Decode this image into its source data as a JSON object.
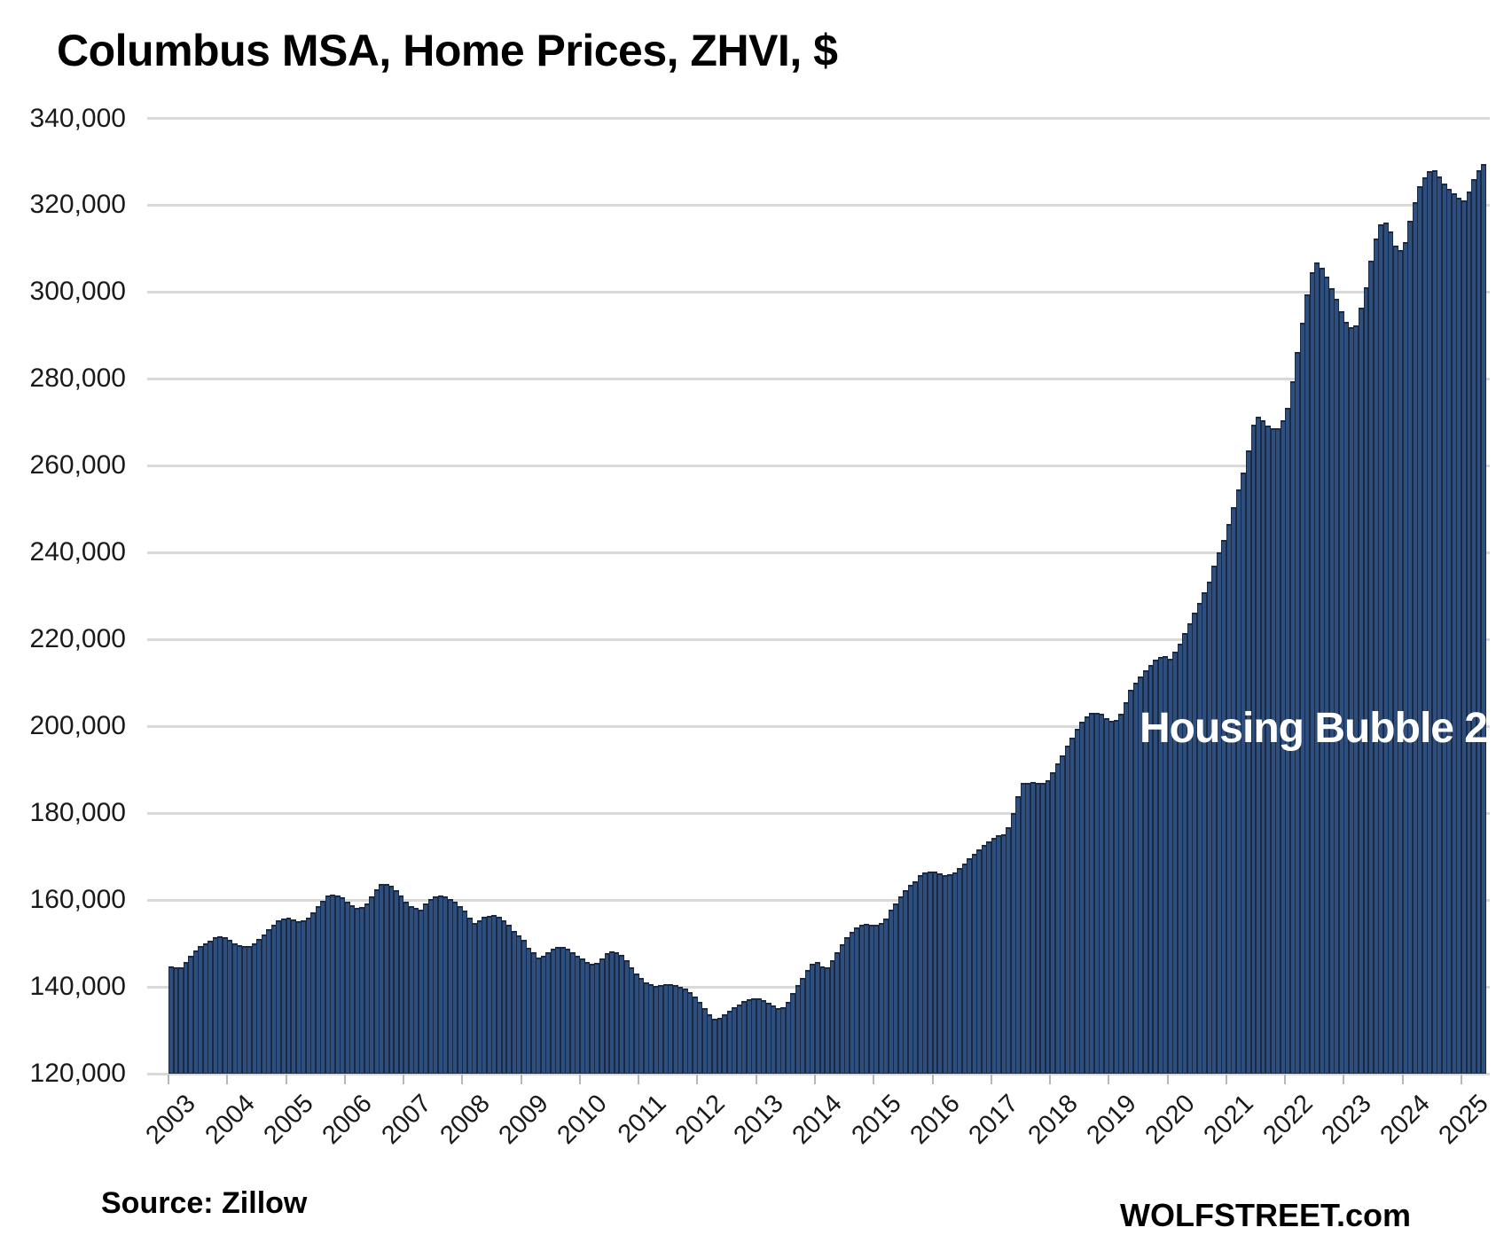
{
  "title": "Columbus MSA, Home Prices, ZHVI, $",
  "annotation": "Housing Bubble 2",
  "source_note": "Source: Zillow",
  "watermark": "WOLFSTREET.com",
  "colors": {
    "bar_fill": "#2e4f7e",
    "bar_border": "#1b2a44",
    "gridline": "#d9d9d9",
    "tick": "#b7b7b7",
    "axis_text": "#1a1a1a",
    "annotation_text": "#ffffff",
    "background": "#ffffff"
  },
  "chart_data": {
    "type": "bar",
    "title": "Columbus MSA, Home Prices, ZHVI, $",
    "unit": "USD",
    "frequency": "monthly",
    "start_month": "2003-01",
    "end_month": "2025-05",
    "grid": "horizontal",
    "legend": "none",
    "ylim": [
      120000,
      340000
    ],
    "y_ticks": [
      120000,
      140000,
      160000,
      180000,
      200000,
      220000,
      240000,
      260000,
      280000,
      300000,
      320000,
      340000
    ],
    "y_tick_labels": [
      "120,000",
      "140,000",
      "160,000",
      "180,000",
      "200,000",
      "220,000",
      "240,000",
      "260,000",
      "280,000",
      "300,000",
      "320,000",
      "340,000"
    ],
    "x_tick_labels": [
      "2003",
      "2004",
      "2005",
      "2006",
      "2007",
      "2008",
      "2009",
      "2010",
      "2011",
      "2012",
      "2013",
      "2014",
      "2015",
      "2016",
      "2017",
      "2018",
      "2019",
      "2020",
      "2021",
      "2022",
      "2023",
      "2024",
      "2025"
    ],
    "values": [
      144700,
      144500,
      144500,
      145800,
      147200,
      148400,
      149300,
      150000,
      150700,
      151400,
      151600,
      151400,
      150800,
      150100,
      149600,
      149300,
      149400,
      150100,
      151000,
      152000,
      153300,
      154400,
      155300,
      155800,
      156000,
      155500,
      155100,
      155300,
      156000,
      157200,
      158600,
      159900,
      161000,
      161300,
      161100,
      160600,
      159600,
      158700,
      158200,
      158400,
      159200,
      160800,
      162500,
      163600,
      163700,
      163200,
      162200,
      161100,
      159700,
      158600,
      158200,
      157700,
      159300,
      160300,
      160800,
      161000,
      160800,
      160300,
      159700,
      158600,
      157600,
      155900,
      154700,
      155300,
      156100,
      156400,
      156600,
      156200,
      155400,
      154200,
      152900,
      151800,
      150800,
      149000,
      147900,
      146800,
      147200,
      148000,
      148800,
      149200,
      149200,
      148700,
      148000,
      147100,
      146600,
      145700,
      145300,
      145600,
      146500,
      147700,
      148100,
      148000,
      147300,
      146200,
      144600,
      143000,
      142000,
      141000,
      140700,
      140300,
      140400,
      140700,
      140700,
      140500,
      140100,
      139700,
      138800,
      137800,
      136600,
      135100,
      133600,
      132700,
      132900,
      133600,
      134400,
      135300,
      136000,
      136700,
      137200,
      137400,
      137300,
      137000,
      136300,
      135700,
      135100,
      135300,
      136500,
      138500,
      140400,
      142000,
      143800,
      145300,
      145800,
      144700,
      144600,
      146100,
      148000,
      149900,
      151400,
      152600,
      153600,
      154400,
      154500,
      154200,
      154300,
      154700,
      155700,
      157700,
      159300,
      160800,
      162200,
      163400,
      164300,
      165700,
      166400,
      166600,
      166600,
      166100,
      165800,
      166000,
      166400,
      167300,
      168300,
      169700,
      170700,
      171700,
      172600,
      173400,
      174300,
      174900,
      175200,
      176800,
      180000,
      184000,
      186900,
      187000,
      187100,
      187000,
      186900,
      187600,
      189500,
      191500,
      193300,
      195500,
      197400,
      199400,
      201000,
      202300,
      203100,
      203200,
      202800,
      201800,
      201200,
      201400,
      202800,
      205600,
      208400,
      210100,
      211500,
      212900,
      214100,
      215300,
      215900,
      216200,
      215600,
      217200,
      219100,
      221400,
      223800,
      226100,
      228500,
      230900,
      233300,
      236900,
      240100,
      242900,
      246500,
      250500,
      254500,
      258500,
      263500,
      269500,
      271200,
      270500,
      269200,
      268600,
      268600,
      270500,
      273400,
      279500,
      286300,
      293000,
      299500,
      304500,
      306900,
      305500,
      303500,
      301000,
      298400,
      295600,
      293100,
      291900,
      292300,
      296500,
      301100,
      307300,
      312400,
      315500,
      316000,
      314000,
      310600,
      309600,
      311600,
      316400,
      320700,
      324300,
      326500,
      327800,
      328000,
      326600,
      325000,
      323700,
      322700,
      321700,
      321200,
      323100,
      326100,
      328000,
      329500
    ]
  }
}
